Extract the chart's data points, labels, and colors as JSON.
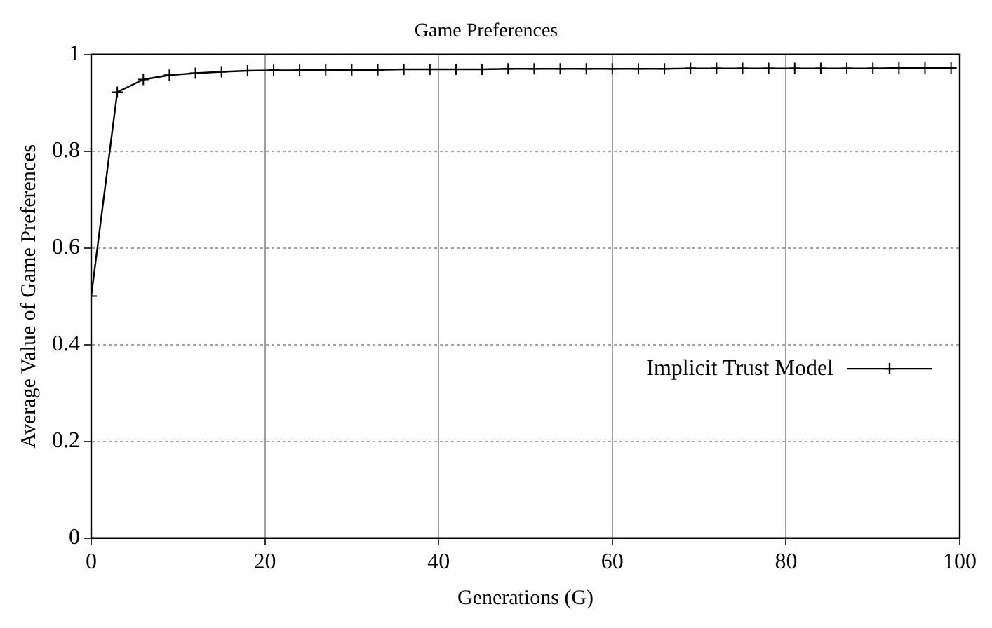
{
  "chart_data": {
    "type": "line",
    "title": "Game Preferences",
    "xlabel": "Generations (G)",
    "ylabel": "Average Value of Game Preferences",
    "x": [
      0,
      3,
      6,
      9,
      12,
      15,
      18,
      21,
      24,
      27,
      30,
      33,
      36,
      39,
      42,
      45,
      48,
      51,
      54,
      57,
      60,
      63,
      66,
      69,
      72,
      75,
      78,
      81,
      84,
      87,
      90,
      93,
      96,
      99
    ],
    "series": [
      {
        "name": "Implicit Trust Model",
        "color": "#000000",
        "values": [
          0.5,
          0.922,
          0.948,
          0.957,
          0.961,
          0.964,
          0.966,
          0.967,
          0.967,
          0.968,
          0.968,
          0.968,
          0.969,
          0.969,
          0.969,
          0.969,
          0.97,
          0.97,
          0.97,
          0.97,
          0.97,
          0.97,
          0.97,
          0.971,
          0.971,
          0.971,
          0.971,
          0.971,
          0.971,
          0.971,
          0.971,
          0.972,
          0.972,
          0.972
        ]
      }
    ],
    "xlim": [
      0,
      100
    ],
    "xticks": [
      0,
      20,
      40,
      60,
      80,
      100
    ],
    "ylim": [
      0,
      1
    ],
    "yticks": [
      0,
      0.2,
      0.4,
      0.6,
      0.8,
      1
    ],
    "grid": true,
    "legend": "right",
    "marker": "cross",
    "line_style": "solid"
  }
}
